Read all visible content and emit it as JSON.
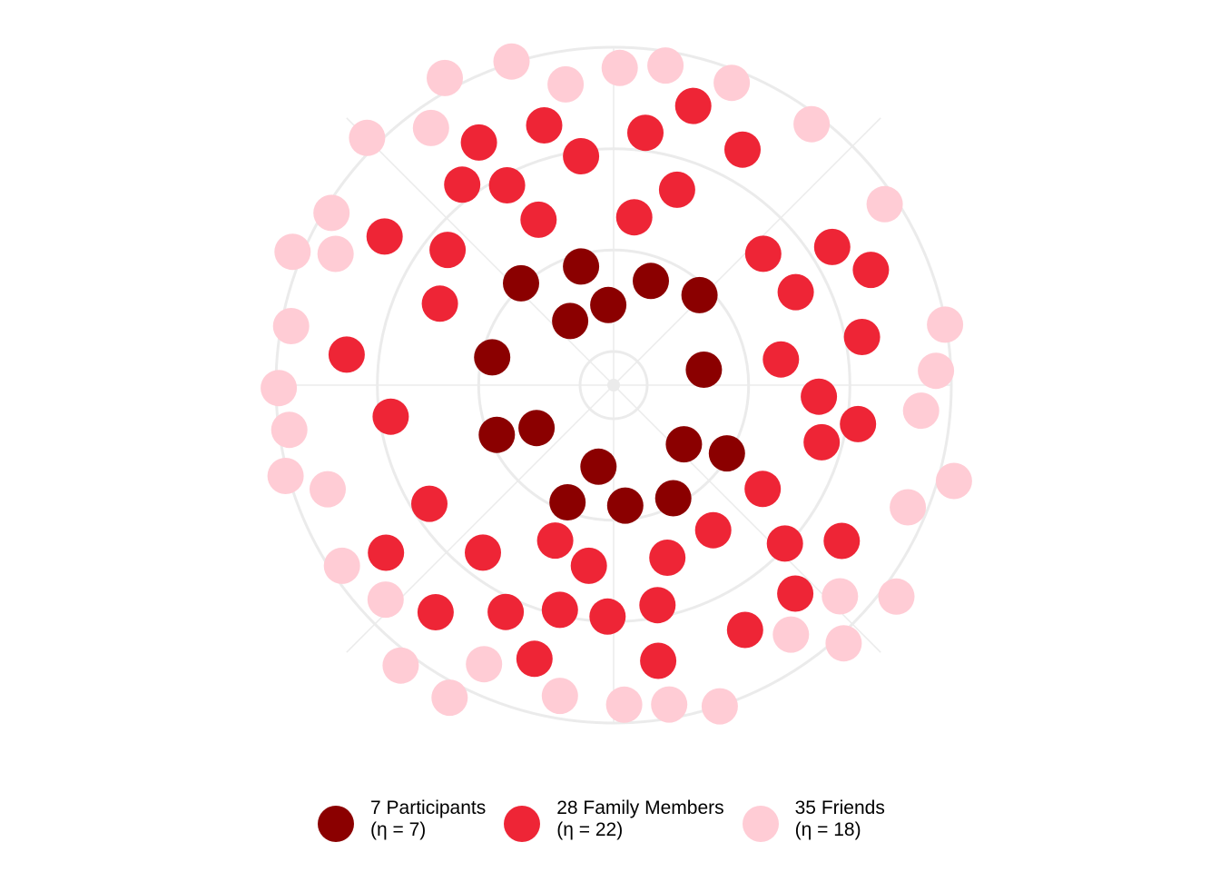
{
  "chart_data": {
    "type": "scatter",
    "coordinate_system": "polar",
    "title": "",
    "xlabel": "",
    "ylabel": "",
    "grid": true,
    "grid_rings": 3,
    "legend_position": "bottom",
    "series": [
      {
        "name": "7 Participants",
        "n_label": "(η = 7)",
        "color": "#8B0000",
        "ring": 1,
        "count": 16
      },
      {
        "name": "28 Family Members",
        "n_label": "(η = 22)",
        "color": "#EE2536",
        "ring": 2,
        "count": 44
      },
      {
        "name": "35 Friends",
        "n_label": "(η = 18)",
        "color": "#FFCCD5",
        "ring": 3,
        "count": 36
      }
    ]
  }
}
